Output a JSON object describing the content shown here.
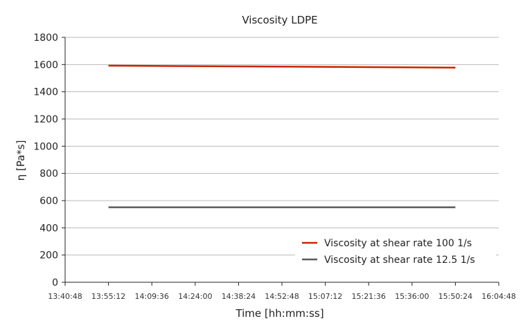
{
  "chart_data": {
    "type": "line",
    "title": "Viscosity LDPE",
    "xlabel": "Time [hh:mm:ss]",
    "ylabel": "η [Pa*s]",
    "x_ticks": [
      "13:40:48",
      "13:55:12",
      "14:09:36",
      "14:24:00",
      "14:38:24",
      "14:52:48",
      "15:07:12",
      "15:21:36",
      "15:36:00",
      "15:50:24",
      "16:04:48"
    ],
    "y_ticks": [
      0,
      200,
      400,
      600,
      800,
      1000,
      1200,
      1400,
      1600,
      1800
    ],
    "xlim": [
      "13:40:48",
      "16:04:48"
    ],
    "ylim": [
      0,
      1800
    ],
    "grid": "horizontal",
    "legend_position": "bottom-right",
    "series": [
      {
        "name": "Viscosity at shear rate 100 1/s",
        "color": "#cc2200",
        "x": [
          "13:55:12",
          "15:50:24"
        ],
        "y": [
          1592,
          1578
        ]
      },
      {
        "name": "Viscosity at shear rate 12.5 1/s",
        "color": "#595959",
        "x": [
          "13:55:12",
          "15:50:24"
        ],
        "y": [
          551,
          551
        ]
      }
    ]
  }
}
